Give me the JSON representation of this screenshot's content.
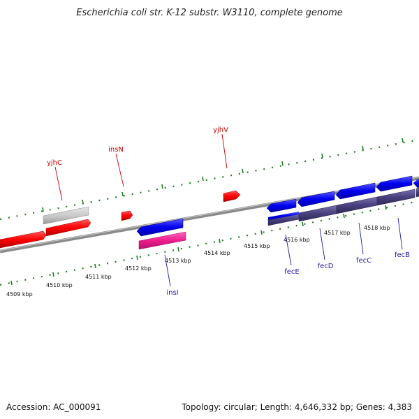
{
  "title": "Escherichia coli str. K-12 substr. W3110, complete genome",
  "accession": "Accession: AC_000091",
  "topology": "Topology: circular; Length: 4,646,332 bp; Genes: 4,383",
  "ticks": [
    "4509 kbp",
    "4510 kbp",
    "4511 kbp",
    "4512 kbp",
    "4513 kbp",
    "4514 kbp",
    "4515 kbp",
    "4516 kbp",
    "4517 kbp",
    "4518 kbp"
  ],
  "labels": [
    "yjhC",
    "insN",
    "yjhV",
    "insI",
    "fecE",
    "fecD",
    "fecC",
    "fecB"
  ],
  "colors": {
    "forward": "#ff0000",
    "reverse": "#0000ee",
    "pseudo": "#c8c8c8",
    "repeat": "#ee1c8c",
    "operon": "#48407c",
    "tick": "#1e7d1e",
    "backbone": "#8a8a8a"
  }
}
